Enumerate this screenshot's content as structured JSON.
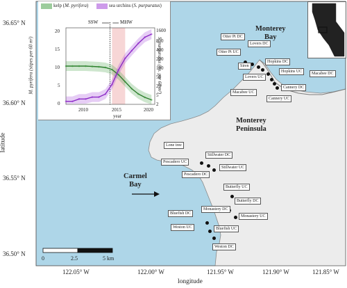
{
  "map": {
    "lat_ticks": [
      "36.65° N",
      "36.60° N",
      "36.55° N",
      "36.50° N"
    ],
    "lon_ticks": [
      "122.05° W",
      "122.00° W",
      "121.95° W",
      "121.90° W",
      "121.85° W"
    ],
    "x_title": "longitude",
    "y_title": "latitude",
    "regions": {
      "monterey_bay": "Monterey\nBay",
      "monterey_peninsula": "Monterey\nPeninsula",
      "carmel_bay": "Carmel\nBay"
    },
    "scale_bar": {
      "labels": [
        "0",
        "2.5",
        "5 km"
      ]
    },
    "colors": {
      "ocean": "#aed6e8",
      "land": "#ececec",
      "coast": "#8a8a8a"
    }
  },
  "sites": [
    {
      "label": "Otter Pt DC"
    },
    {
      "label": "Lovers DC"
    },
    {
      "label": "Otter Pt UC"
    },
    {
      "label": "Siren"
    },
    {
      "label": "Hopkins DC"
    },
    {
      "label": "Lovers UC"
    },
    {
      "label": "Hopkins UC"
    },
    {
      "label": "Macabee DC"
    },
    {
      "label": "Cannery DC"
    },
    {
      "label": "Macabee UC"
    },
    {
      "label": "Cannery UC"
    },
    {
      "label": "Lone tree"
    },
    {
      "label": "Stillwater DC"
    },
    {
      "label": "Pescadero UC"
    },
    {
      "label": "Stillwater UC"
    },
    {
      "label": "Pescadero DC"
    },
    {
      "label": "Butterfly UC"
    },
    {
      "label": "Butterfly DC"
    },
    {
      "label": "Monastery DC"
    },
    {
      "label": "Bluefish DC"
    },
    {
      "label": "Monastery UC"
    },
    {
      "label": "Weston UC"
    },
    {
      "label": "Bluefish UC"
    },
    {
      "label": "Weston DC"
    }
  ],
  "inset_plot": {
    "legend": [
      {
        "name": "kelp (",
        "italic": "M. pyrifera",
        "tail": ")",
        "color": "#3a9a3a"
      },
      {
        "name": "sea urchins (",
        "italic": "S. purpuratus",
        "tail": ")",
        "color": "#9b36d6"
      }
    ],
    "x_ticks": [
      "2010",
      "2015",
      "2020"
    ],
    "x_title": "year",
    "y_left_ticks": [
      "20",
      "15",
      "10",
      "5",
      "0"
    ],
    "y_left_title": "M. pyrifera (stipes per 60 m²)",
    "y_right_ticks": [
      "1600",
      "800",
      "400",
      "200",
      "100",
      "50",
      "20",
      "5",
      "2"
    ],
    "y_right_title": "S. purpuratus (no. per 60 m²)",
    "annotations": {
      "ssw": "SSW",
      "mhw": "MHW"
    }
  },
  "chart_data": {
    "type": "line",
    "x": [
      2007,
      2008,
      2009,
      2010,
      2011,
      2012,
      2013,
      2014,
      2015,
      2016,
      2017,
      2018,
      2019,
      2020
    ],
    "series": [
      {
        "name": "kelp (M. pyrifera)",
        "axis": "left",
        "values": [
          11.0,
          11.0,
          11.0,
          11.0,
          10.9,
          10.8,
          10.6,
          10.0,
          8.5,
          6.5,
          4.5,
          3.0,
          2.0,
          1.3
        ]
      },
      {
        "name": "sea urchins (S. purpuratus)",
        "axis": "right",
        "values": [
          2,
          2,
          2.5,
          2.5,
          3,
          3,
          4,
          10,
          40,
          120,
          250,
          500,
          900,
          1200
        ]
      }
    ],
    "xlabel": "year",
    "ylabel": "M. pyrifera (stipes per 60 m²)",
    "y2label": "S. purpuratus (no. per 60 m²)",
    "xlim": [
      2007,
      2020.5
    ],
    "ylim": [
      0,
      22
    ],
    "y2scale": "log",
    "vlines": [
      {
        "label": "SSW",
        "x": 2013.7
      }
    ],
    "shaded": [
      {
        "label": "MHW",
        "x": [
          2014,
          2016
        ]
      }
    ]
  }
}
